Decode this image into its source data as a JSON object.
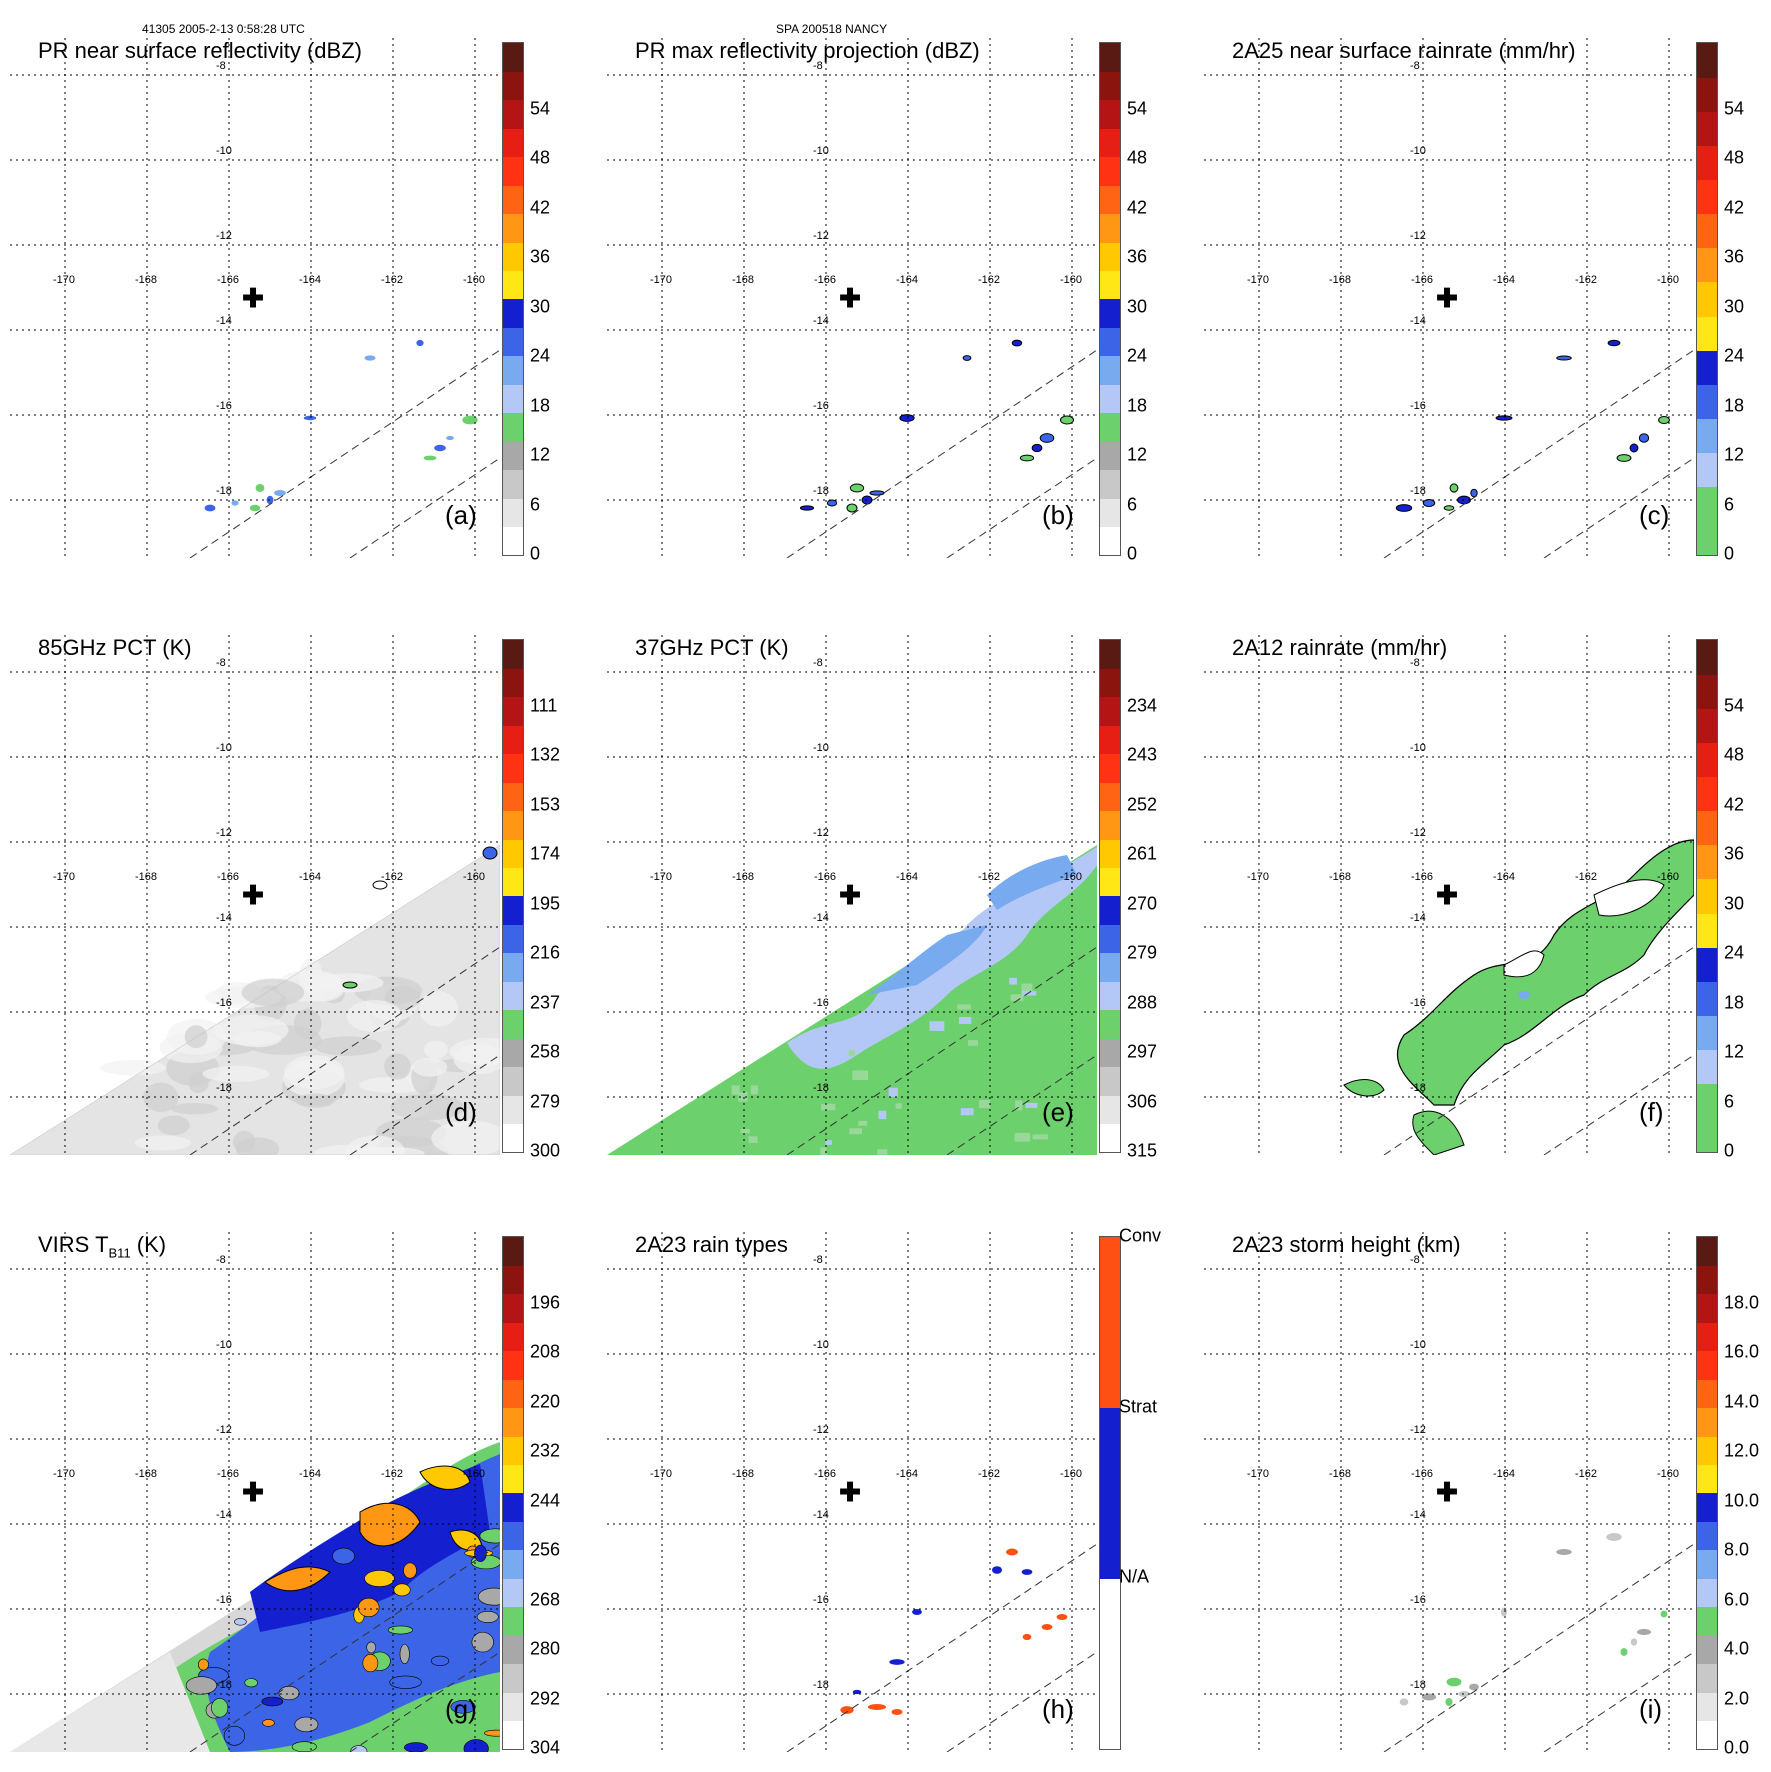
{
  "header": {
    "orbit_time": "41305 2005-2-13 0:58:28 UTC",
    "storm": "SPA 200518 NANCY"
  },
  "grid": {
    "lon_labels": [
      "-170",
      "-168",
      "-166",
      "-164",
      "-162",
      "-160"
    ],
    "lat_labels": [
      "-8",
      "-10",
      "-12",
      "-14",
      "-16",
      "-18"
    ]
  },
  "icons": {
    "storm_center": "cross-icon"
  },
  "panels": [
    {
      "title": "PR near surface reflectivity (dBZ)",
      "label": "(a)",
      "content": "sparse",
      "colorbar": {
        "ticks": [
          "0",
          "6",
          "12",
          "18",
          "24",
          "30",
          "36",
          "42",
          "48",
          "54"
        ],
        "segments": [
          "#ffffff",
          "#e6e6e6",
          "#c8c8c8",
          "#a8a8a8",
          "#6cd06c",
          "#b4c8f8",
          "#78aaf0",
          "#3c64e6",
          "#1420d0",
          "#ffe614",
          "#ffc800",
          "#ff9614",
          "#ff6414",
          "#ff3214",
          "#e61e14",
          "#b41414",
          "#8c140f",
          "#5a1a14"
        ]
      }
    },
    {
      "title": "PR max reflectivity projection (dBZ)",
      "label": "(b)",
      "content": "sparse-dark",
      "colorbar": {
        "ticks": [
          "0",
          "6",
          "12",
          "18",
          "24",
          "30",
          "36",
          "42",
          "48",
          "54"
        ],
        "segments": [
          "#ffffff",
          "#e6e6e6",
          "#c8c8c8",
          "#a8a8a8",
          "#6cd06c",
          "#b4c8f8",
          "#78aaf0",
          "#3c64e6",
          "#1420d0",
          "#ffe614",
          "#ffc800",
          "#ff9614",
          "#ff6414",
          "#ff3214",
          "#e61e14",
          "#b41414",
          "#8c140f",
          "#5a1a14"
        ]
      }
    },
    {
      "title": "2A25 near surface rainrate (mm/hr)",
      "label": "(c)",
      "content": "sparse-dark",
      "colorbar": {
        "ticks": [
          "0",
          "6",
          "12",
          "18",
          "24",
          "30",
          "36",
          "42",
          "48",
          "54"
        ],
        "segments": [
          "#6cd06c",
          "#6cd06c",
          "#b4c8f8",
          "#78aaf0",
          "#3c64e6",
          "#1420d0",
          "#ffe614",
          "#ffc800",
          "#ff9614",
          "#ff6414",
          "#ff3214",
          "#e61e14",
          "#b41414",
          "#8c140f",
          "#5a1a14"
        ]
      }
    },
    {
      "title": "85GHz PCT (K)",
      "label": "(d)",
      "content": "gray",
      "colorbar": {
        "ticks": [
          "300",
          "279",
          "258",
          "237",
          "216",
          "195",
          "174",
          "153",
          "132",
          "111"
        ],
        "segments": [
          "#ffffff",
          "#e6e6e6",
          "#c8c8c8",
          "#a8a8a8",
          "#6cd06c",
          "#b4c8f8",
          "#78aaf0",
          "#3c64e6",
          "#1420d0",
          "#ffe614",
          "#ffc800",
          "#ff9614",
          "#ff6414",
          "#ff3214",
          "#e61e14",
          "#b41414",
          "#8c140f",
          "#5a1a14"
        ]
      }
    },
    {
      "title": "37GHz PCT (K)",
      "label": "(e)",
      "content": "green",
      "colorbar": {
        "ticks": [
          "315",
          "306",
          "297",
          "288",
          "279",
          "270",
          "261",
          "252",
          "243",
          "234"
        ],
        "segments": [
          "#ffffff",
          "#e6e6e6",
          "#c8c8c8",
          "#a8a8a8",
          "#6cd06c",
          "#b4c8f8",
          "#78aaf0",
          "#3c64e6",
          "#1420d0",
          "#ffe614",
          "#ffc800",
          "#ff9614",
          "#ff6414",
          "#ff3214",
          "#e61e14",
          "#b41414",
          "#8c140f",
          "#5a1a14"
        ]
      }
    },
    {
      "title": "2A12 rainrate (mm/hr)",
      "label": "(f)",
      "content": "rain",
      "colorbar": {
        "ticks": [
          "0",
          "6",
          "12",
          "18",
          "24",
          "30",
          "36",
          "42",
          "48",
          "54"
        ],
        "segments": [
          "#6cd06c",
          "#6cd06c",
          "#b4c8f8",
          "#78aaf0",
          "#3c64e6",
          "#1420d0",
          "#ffe614",
          "#ffc800",
          "#ff9614",
          "#ff6414",
          "#ff3214",
          "#e61e14",
          "#b41414",
          "#8c140f",
          "#5a1a14"
        ]
      }
    },
    {
      "title": "VIRS T",
      "title_sub": "B11",
      "title_suffix": " (K)",
      "label": "(g)",
      "content": "ir",
      "colorbar": {
        "ticks": [
          "304",
          "292",
          "280",
          "268",
          "256",
          "244",
          "232",
          "220",
          "208",
          "196"
        ],
        "segments": [
          "#ffffff",
          "#e6e6e6",
          "#c8c8c8",
          "#a8a8a8",
          "#6cd06c",
          "#b4c8f8",
          "#78aaf0",
          "#3c64e6",
          "#1420d0",
          "#ffe614",
          "#ffc800",
          "#ff9614",
          "#ff6414",
          "#ff3214",
          "#e61e14",
          "#b41414",
          "#8c140f",
          "#5a1a14"
        ]
      }
    },
    {
      "title": "2A23 rain types",
      "label": "(h)",
      "content": "types",
      "colorbar": {
        "cat_labels": [
          "N/A",
          "Strat",
          "Conv"
        ],
        "segments": [
          "#ffffff",
          "#1420d0",
          "#ff5014"
        ]
      }
    },
    {
      "title": "2A23 storm height (km)",
      "label": "(i)",
      "content": "sparse-gray",
      "colorbar": {
        "ticks": [
          "0.0",
          "2.0",
          "4.0",
          "6.0",
          "8.0",
          "10.0",
          "12.0",
          "14.0",
          "16.0",
          "18.0"
        ],
        "segments": [
          "#ffffff",
          "#e6e6e6",
          "#c8c8c8",
          "#a8a8a8",
          "#6cd06c",
          "#b4c8f8",
          "#78aaf0",
          "#3c64e6",
          "#1420d0",
          "#ffe614",
          "#ffc800",
          "#ff9614",
          "#ff6414",
          "#ff3214",
          "#e61e14",
          "#b41414",
          "#8c140f",
          "#5a1a14"
        ]
      }
    }
  ]
}
